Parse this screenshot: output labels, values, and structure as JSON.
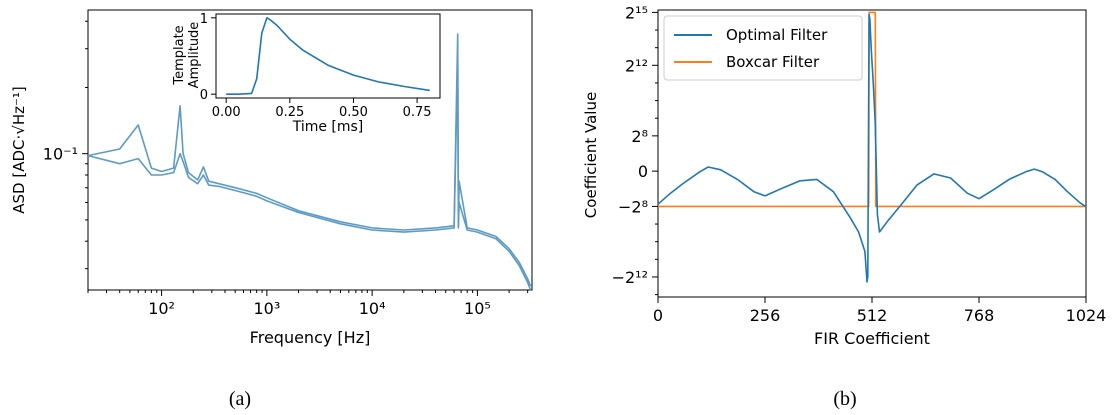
{
  "chart_data": [
    {
      "type": "line",
      "panel_caption": "(a)",
      "xlabel": "Frequency [Hz]",
      "ylabel": "ASD [ADC·√Hz⁻¹]",
      "xscale": "log",
      "yscale": "log",
      "xlim": [
        20,
        330000
      ],
      "ylim": [
        0.024,
        0.45
      ],
      "x_tick_labels": [
        "10²",
        "10³",
        "10⁴",
        "10⁵"
      ],
      "x_tick_values": [
        100,
        1000,
        10000,
        100000
      ],
      "y_tick_labels": [
        "10⁻¹"
      ],
      "y_tick_values": [
        0.1
      ],
      "color": "#5c9bc6",
      "series": [
        {
          "x": [
            20,
            40,
            60,
            80,
            100,
            130,
            150,
            160,
            180,
            220,
            250,
            280,
            350,
            500,
            800,
            1000,
            2000,
            5000,
            10000,
            20000,
            40000,
            60000,
            65000,
            66000,
            67000,
            80000,
            100000,
            150000,
            200000,
            250000,
            300000,
            320000
          ],
          "y": [
            0.098,
            0.105,
            0.135,
            0.086,
            0.083,
            0.086,
            0.165,
            0.1,
            0.082,
            0.076,
            0.087,
            0.075,
            0.073,
            0.07,
            0.066,
            0.063,
            0.055,
            0.049,
            0.046,
            0.045,
            0.046,
            0.047,
            0.35,
            0.047,
            0.075,
            0.046,
            0.045,
            0.042,
            0.037,
            0.032,
            0.027,
            0.025
          ]
        },
        {
          "x": [
            20,
            40,
            60,
            80,
            100,
            130,
            150,
            160,
            180,
            220,
            250,
            280,
            350,
            500,
            800,
            1000,
            2000,
            5000,
            10000,
            20000,
            40000,
            60000,
            65000,
            66000,
            67000,
            80000,
            100000,
            150000,
            200000,
            250000,
            300000,
            320000
          ],
          "y": [
            0.098,
            0.09,
            0.095,
            0.08,
            0.08,
            0.082,
            0.1,
            0.092,
            0.078,
            0.073,
            0.08,
            0.072,
            0.071,
            0.068,
            0.064,
            0.061,
            0.054,
            0.048,
            0.045,
            0.044,
            0.045,
            0.046,
            0.28,
            0.046,
            0.06,
            0.045,
            0.044,
            0.041,
            0.036,
            0.031,
            0.026,
            0.024
          ]
        }
      ],
      "inset": {
        "xlabel": "Time [ms]",
        "ylabel_lines": [
          "Template",
          "Amplitude"
        ],
        "xlim": [
          -0.04,
          0.84
        ],
        "ylim": [
          -0.05,
          1.05
        ],
        "x_tick_labels": [
          "0.00",
          "0.25",
          "0.50",
          "0.75"
        ],
        "x_tick_values": [
          0,
          0.25,
          0.5,
          0.75
        ],
        "y_tick_labels": [
          "0",
          "1"
        ],
        "y_tick_values": [
          0,
          1
        ],
        "color": "#1f77b4",
        "x": [
          0,
          0.05,
          0.1,
          0.12,
          0.14,
          0.16,
          0.17,
          0.2,
          0.25,
          0.3,
          0.4,
          0.5,
          0.6,
          0.7,
          0.8
        ],
        "y": [
          0,
          0,
          0.01,
          0.2,
          0.8,
          1.0,
          0.98,
          0.9,
          0.72,
          0.58,
          0.38,
          0.25,
          0.16,
          0.1,
          0.05
        ]
      }
    },
    {
      "type": "line",
      "panel_caption": "(b)",
      "xlabel": "FIR Coefficient",
      "ylabel": "Coefficient  Value",
      "yscale": "symlog",
      "xlim": [
        0,
        1024
      ],
      "x_tick_labels": [
        "0",
        "256",
        "512",
        "768",
        "1024"
      ],
      "x_tick_values": [
        0,
        256,
        512,
        768,
        1024
      ],
      "y_tick_labels": [
        "2¹⁵",
        "2¹²",
        "2⁸",
        "0",
        "−2⁸",
        "−2¹²"
      ],
      "y_tick_values": [
        32768,
        4096,
        256,
        0,
        -256,
        -4096
      ],
      "legend_position": "top-left",
      "series": [
        {
          "name": "Optimal Filter",
          "color": "#1f77b4",
          "x": [
            0,
            30,
            60,
            100,
            120,
            150,
            190,
            230,
            256,
            300,
            340,
            380,
            420,
            460,
            480,
            495,
            500,
            502,
            505,
            507,
            510,
            515,
            520,
            525,
            530,
            550,
            580,
            620,
            660,
            700,
            740,
            768,
            800,
            840,
            880,
            900,
            920,
            950,
            980,
            1010,
            1024
          ],
          "y": [
            -240,
            -160,
            -90,
            -5,
            30,
            10,
            -60,
            -150,
            -180,
            -120,
            -70,
            -60,
            -150,
            -400,
            -700,
            -1500,
            -5000,
            -4000,
            30000,
            25000,
            8000,
            2000,
            400,
            -350,
            -700,
            -450,
            -250,
            -100,
            -20,
            -50,
            -160,
            -200,
            -140,
            -60,
            -5,
            15,
            -5,
            -60,
            -150,
            -230,
            -260
          ]
        },
        {
          "name": "Boxcar Filter",
          "color": "#ff7f0e",
          "x": [
            0,
            504,
            505,
            520,
            521,
            1024
          ],
          "y": [
            -256,
            -256,
            32768,
            32768,
            -256,
            -256
          ]
        }
      ]
    }
  ]
}
